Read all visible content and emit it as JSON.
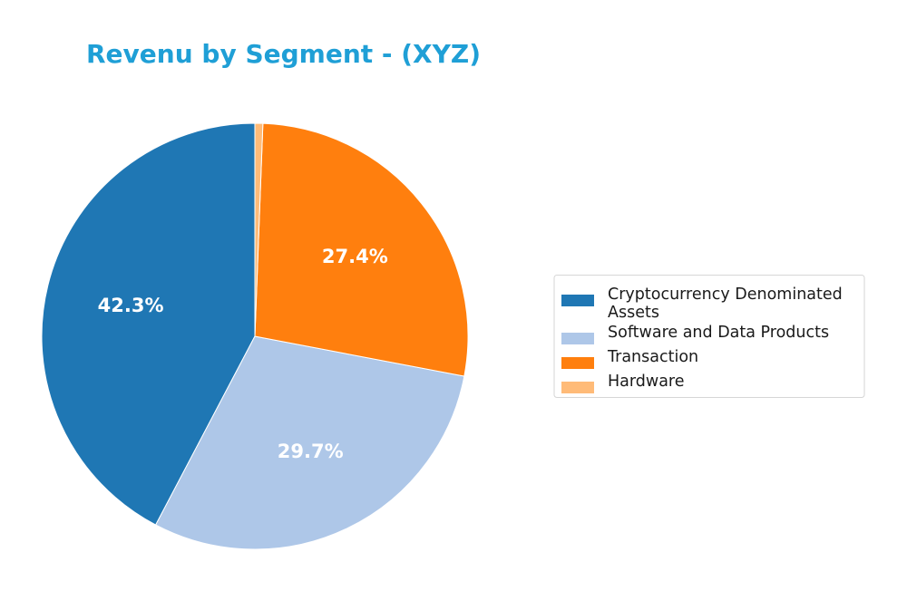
{
  "chart_data": {
    "type": "pie",
    "title": "Revenu by Segment - (XYZ)",
    "title_color": "#1f9fd6",
    "categories": [
      "Cryptocurrency Denominated Assets",
      "Software and Data Products",
      "Transaction",
      "Hardware"
    ],
    "values": [
      42.3,
      29.7,
      27.4,
      0.6
    ],
    "colors": [
      "#1f77b4",
      "#aec7e8",
      "#ff7f0e",
      "#ffbb78"
    ],
    "slice_labels": [
      "42.3%",
      "29.7%",
      "27.4%",
      ""
    ],
    "legend": {
      "position": "right",
      "entries": [
        [
          "Cryptocurrency Denominated",
          "Assets"
        ],
        [
          "Software and Data Products"
        ],
        [
          "Transaction"
        ],
        [
          "Hardware"
        ]
      ]
    },
    "start_angle": 90,
    "direction": "counterclockwise"
  }
}
